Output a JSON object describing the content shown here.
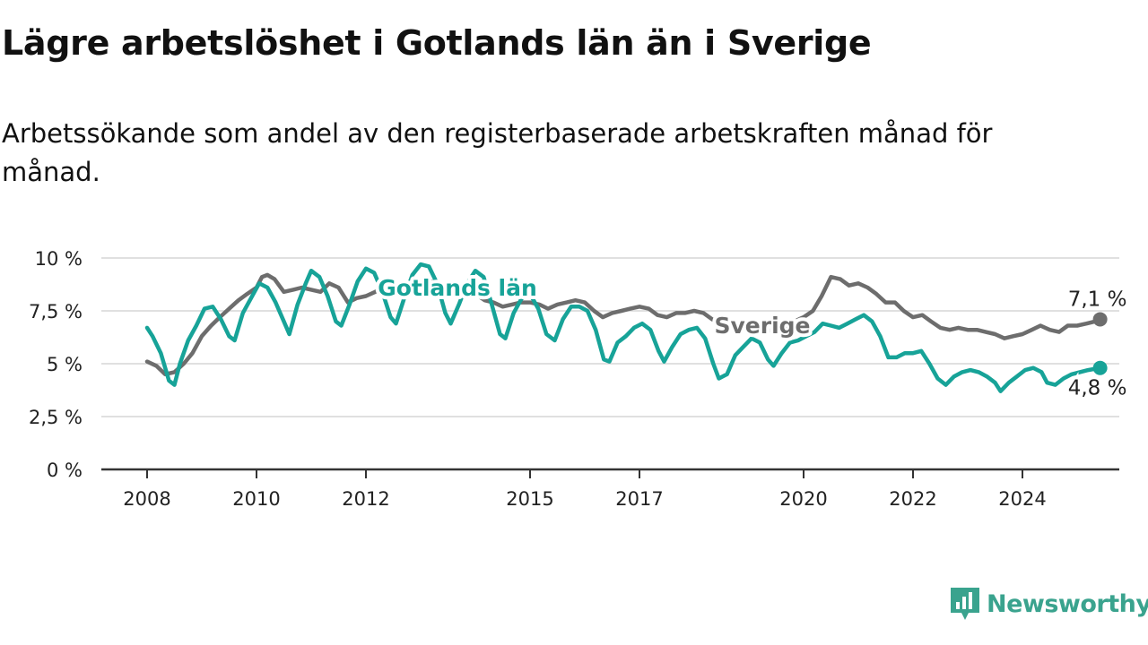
{
  "title": "Lägre arbetslöshet i Gotlands län än i Sverige",
  "subtitle": "Arbetssökande som andel av den registerbaserade arbetskraften månad för månad.",
  "brand": {
    "name": "Newsworthy",
    "color": "#3aa38e"
  },
  "chart_data": {
    "type": "line",
    "y_ticks": [
      {
        "value": 0,
        "label": "0 %"
      },
      {
        "value": 2.5,
        "label": "2,5 %"
      },
      {
        "value": 5,
        "label": "5 %"
      },
      {
        "value": 7.5,
        "label": "7,5 %"
      },
      {
        "value": 10,
        "label": "10 %"
      }
    ],
    "x_ticks": [
      {
        "value": 2008,
        "label": "2008"
      },
      {
        "value": 2010,
        "label": "2010"
      },
      {
        "value": 2012,
        "label": "2012"
      },
      {
        "value": 2015,
        "label": "2015"
      },
      {
        "value": 2017,
        "label": "2017"
      },
      {
        "value": 2020,
        "label": "2020"
      },
      {
        "value": 2022,
        "label": "2022"
      },
      {
        "value": 2024,
        "label": "2024"
      }
    ],
    "xlim": [
      2007.2,
      2025.8
    ],
    "ylim": [
      0,
      10
    ],
    "grid": true,
    "series": [
      {
        "name": "Sverige",
        "color": "#6d6d6d",
        "end_label": "7,1 %",
        "points": [
          [
            2008.0,
            5.1
          ],
          [
            2008.17,
            4.9
          ],
          [
            2008.33,
            4.5
          ],
          [
            2008.5,
            4.6
          ],
          [
            2008.67,
            5.0
          ],
          [
            2008.83,
            5.5
          ],
          [
            2009.0,
            6.3
          ],
          [
            2009.17,
            6.8
          ],
          [
            2009.33,
            7.2
          ],
          [
            2009.5,
            7.6
          ],
          [
            2009.67,
            8.0
          ],
          [
            2009.83,
            8.3
          ],
          [
            2010.0,
            8.6
          ],
          [
            2010.1,
            9.1
          ],
          [
            2010.2,
            9.2
          ],
          [
            2010.33,
            9.0
          ],
          [
            2010.5,
            8.4
          ],
          [
            2010.67,
            8.5
          ],
          [
            2010.83,
            8.6
          ],
          [
            2011.0,
            8.5
          ],
          [
            2011.17,
            8.4
          ],
          [
            2011.33,
            8.8
          ],
          [
            2011.5,
            8.6
          ],
          [
            2011.67,
            7.9
          ],
          [
            2011.83,
            8.1
          ],
          [
            2012.0,
            8.2
          ],
          [
            2012.17,
            8.4
          ],
          [
            2012.33,
            8.7
          ],
          [
            2012.5,
            8.8
          ],
          [
            2012.67,
            8.6
          ],
          [
            2012.83,
            8.5
          ],
          [
            2013.0,
            8.7
          ],
          [
            2013.17,
            8.9
          ],
          [
            2013.33,
            8.8
          ],
          [
            2013.5,
            8.5
          ],
          [
            2013.67,
            8.4
          ],
          [
            2013.83,
            8.3
          ],
          [
            2014.0,
            8.3
          ],
          [
            2014.17,
            8.0
          ],
          [
            2014.33,
            7.9
          ],
          [
            2014.5,
            7.7
          ],
          [
            2014.67,
            7.8
          ],
          [
            2014.83,
            7.9
          ],
          [
            2015.0,
            7.9
          ],
          [
            2015.17,
            7.8
          ],
          [
            2015.33,
            7.6
          ],
          [
            2015.5,
            7.8
          ],
          [
            2015.67,
            7.9
          ],
          [
            2015.83,
            8.0
          ],
          [
            2016.0,
            7.9
          ],
          [
            2016.17,
            7.5
          ],
          [
            2016.33,
            7.2
          ],
          [
            2016.5,
            7.4
          ],
          [
            2016.67,
            7.5
          ],
          [
            2016.83,
            7.6
          ],
          [
            2017.0,
            7.7
          ],
          [
            2017.17,
            7.6
          ],
          [
            2017.33,
            7.3
          ],
          [
            2017.5,
            7.2
          ],
          [
            2017.67,
            7.4
          ],
          [
            2017.83,
            7.4
          ],
          [
            2018.0,
            7.5
          ],
          [
            2018.17,
            7.4
          ],
          [
            2018.33,
            7.1
          ],
          [
            2018.5,
            6.9
          ],
          [
            2018.67,
            6.8
          ],
          [
            2018.83,
            6.8
          ],
          [
            2019.0,
            6.8
          ],
          [
            2019.17,
            6.8
          ],
          [
            2019.33,
            6.6
          ],
          [
            2019.5,
            6.5
          ],
          [
            2019.67,
            6.8
          ],
          [
            2019.83,
            7.0
          ],
          [
            2020.0,
            7.2
          ],
          [
            2020.17,
            7.5
          ],
          [
            2020.33,
            8.2
          ],
          [
            2020.5,
            9.1
          ],
          [
            2020.67,
            9.0
          ],
          [
            2020.83,
            8.7
          ],
          [
            2021.0,
            8.8
          ],
          [
            2021.17,
            8.6
          ],
          [
            2021.33,
            8.3
          ],
          [
            2021.5,
            7.9
          ],
          [
            2021.67,
            7.9
          ],
          [
            2021.83,
            7.5
          ],
          [
            2022.0,
            7.2
          ],
          [
            2022.17,
            7.3
          ],
          [
            2022.33,
            7.0
          ],
          [
            2022.5,
            6.7
          ],
          [
            2022.67,
            6.6
          ],
          [
            2022.83,
            6.7
          ],
          [
            2023.0,
            6.6
          ],
          [
            2023.17,
            6.6
          ],
          [
            2023.33,
            6.5
          ],
          [
            2023.5,
            6.4
          ],
          [
            2023.67,
            6.2
          ],
          [
            2023.83,
            6.3
          ],
          [
            2024.0,
            6.4
          ],
          [
            2024.17,
            6.6
          ],
          [
            2024.33,
            6.8
          ],
          [
            2024.5,
            6.6
          ],
          [
            2024.67,
            6.5
          ],
          [
            2024.83,
            6.8
          ],
          [
            2025.0,
            6.8
          ],
          [
            2025.17,
            6.9
          ],
          [
            2025.33,
            7.0
          ],
          [
            2025.42,
            7.1
          ]
        ]
      },
      {
        "name": "Gotlands län",
        "color": "#17a398",
        "end_label": "4,8 %",
        "points": [
          [
            2008.0,
            6.7
          ],
          [
            2008.1,
            6.3
          ],
          [
            2008.25,
            5.5
          ],
          [
            2008.4,
            4.2
          ],
          [
            2008.5,
            4.0
          ],
          [
            2008.6,
            5.0
          ],
          [
            2008.75,
            6.1
          ],
          [
            2008.9,
            6.8
          ],
          [
            2009.05,
            7.6
          ],
          [
            2009.2,
            7.7
          ],
          [
            2009.35,
            7.1
          ],
          [
            2009.5,
            6.3
          ],
          [
            2009.6,
            6.1
          ],
          [
            2009.75,
            7.4
          ],
          [
            2009.9,
            8.1
          ],
          [
            2010.05,
            8.8
          ],
          [
            2010.2,
            8.6
          ],
          [
            2010.35,
            7.9
          ],
          [
            2010.5,
            7.0
          ],
          [
            2010.6,
            6.4
          ],
          [
            2010.75,
            7.8
          ],
          [
            2010.9,
            8.8
          ],
          [
            2011.0,
            9.4
          ],
          [
            2011.15,
            9.1
          ],
          [
            2011.3,
            8.2
          ],
          [
            2011.45,
            7.0
          ],
          [
            2011.55,
            6.8
          ],
          [
            2011.7,
            7.8
          ],
          [
            2011.85,
            8.9
          ],
          [
            2012.0,
            9.5
          ],
          [
            2012.15,
            9.3
          ],
          [
            2012.3,
            8.4
          ],
          [
            2012.45,
            7.2
          ],
          [
            2012.55,
            6.9
          ],
          [
            2012.7,
            8.1
          ],
          [
            2012.85,
            9.2
          ],
          [
            2013.0,
            9.7
          ],
          [
            2013.15,
            9.6
          ],
          [
            2013.3,
            8.8
          ],
          [
            2013.45,
            7.4
          ],
          [
            2013.55,
            6.9
          ],
          [
            2013.7,
            7.8
          ],
          [
            2013.85,
            8.8
          ],
          [
            2014.0,
            9.4
          ],
          [
            2014.15,
            9.1
          ],
          [
            2014.3,
            7.8
          ],
          [
            2014.45,
            6.4
          ],
          [
            2014.55,
            6.2
          ],
          [
            2014.7,
            7.4
          ],
          [
            2014.85,
            8.1
          ],
          [
            2015.0,
            8.3
          ],
          [
            2015.15,
            7.6
          ],
          [
            2015.3,
            6.4
          ],
          [
            2015.45,
            6.1
          ],
          [
            2015.6,
            7.1
          ],
          [
            2015.75,
            7.7
          ],
          [
            2015.9,
            7.7
          ],
          [
            2016.05,
            7.5
          ],
          [
            2016.2,
            6.6
          ],
          [
            2016.35,
            5.2
          ],
          [
            2016.45,
            5.1
          ],
          [
            2016.6,
            6.0
          ],
          [
            2016.75,
            6.3
          ],
          [
            2016.9,
            6.7
          ],
          [
            2017.05,
            6.9
          ],
          [
            2017.2,
            6.6
          ],
          [
            2017.35,
            5.6
          ],
          [
            2017.45,
            5.1
          ],
          [
            2017.6,
            5.8
          ],
          [
            2017.75,
            6.4
          ],
          [
            2017.9,
            6.6
          ],
          [
            2018.05,
            6.7
          ],
          [
            2018.2,
            6.2
          ],
          [
            2018.35,
            5.0
          ],
          [
            2018.45,
            4.3
          ],
          [
            2018.6,
            4.5
          ],
          [
            2018.75,
            5.4
          ],
          [
            2018.9,
            5.8
          ],
          [
            2019.05,
            6.2
          ],
          [
            2019.2,
            6.0
          ],
          [
            2019.35,
            5.2
          ],
          [
            2019.45,
            4.9
          ],
          [
            2019.6,
            5.5
          ],
          [
            2019.75,
            6.0
          ],
          [
            2019.9,
            6.1
          ],
          [
            2020.05,
            6.3
          ],
          [
            2020.2,
            6.5
          ],
          [
            2020.35,
            6.9
          ],
          [
            2020.5,
            6.8
          ],
          [
            2020.65,
            6.7
          ],
          [
            2020.8,
            6.9
          ],
          [
            2020.95,
            7.1
          ],
          [
            2021.1,
            7.3
          ],
          [
            2021.25,
            7.0
          ],
          [
            2021.4,
            6.3
          ],
          [
            2021.55,
            5.3
          ],
          [
            2021.7,
            5.3
          ],
          [
            2021.85,
            5.5
          ],
          [
            2022.0,
            5.5
          ],
          [
            2022.15,
            5.6
          ],
          [
            2022.3,
            5.0
          ],
          [
            2022.45,
            4.3
          ],
          [
            2022.6,
            4.0
          ],
          [
            2022.75,
            4.4
          ],
          [
            2022.9,
            4.6
          ],
          [
            2023.05,
            4.7
          ],
          [
            2023.2,
            4.6
          ],
          [
            2023.35,
            4.4
          ],
          [
            2023.5,
            4.1
          ],
          [
            2023.6,
            3.7
          ],
          [
            2023.75,
            4.1
          ],
          [
            2023.9,
            4.4
          ],
          [
            2024.05,
            4.7
          ],
          [
            2024.2,
            4.8
          ],
          [
            2024.35,
            4.6
          ],
          [
            2024.45,
            4.1
          ],
          [
            2024.6,
            4.0
          ],
          [
            2024.75,
            4.3
          ],
          [
            2024.9,
            4.5
          ],
          [
            2025.05,
            4.6
          ],
          [
            2025.2,
            4.7
          ],
          [
            2025.42,
            4.8
          ]
        ]
      }
    ]
  }
}
